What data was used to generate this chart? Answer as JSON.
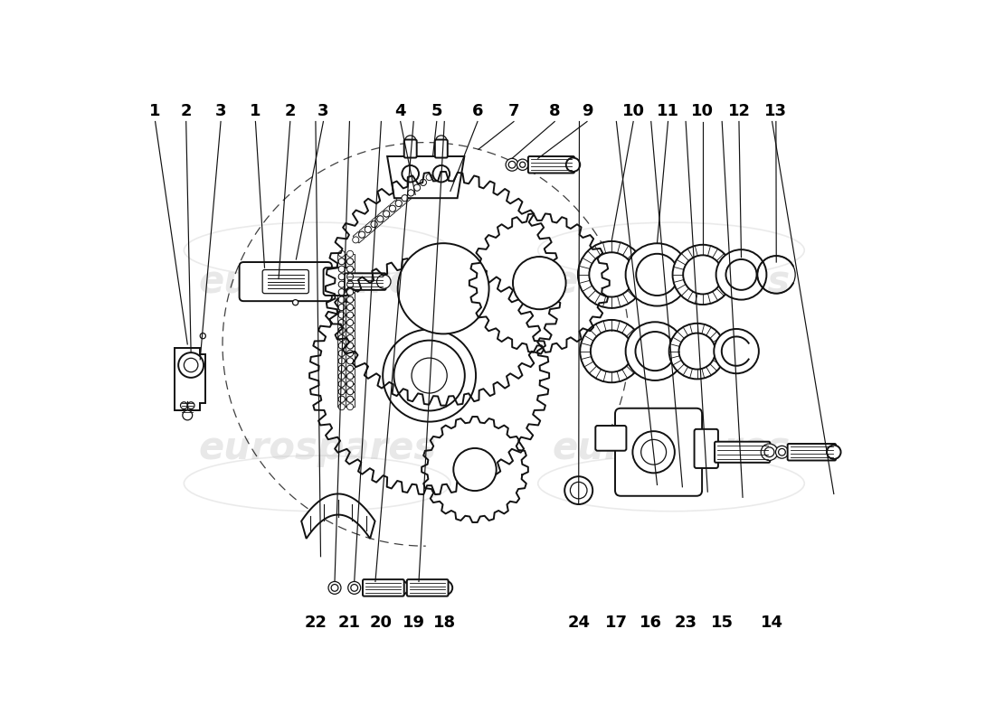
{
  "background_color": "#ffffff",
  "line_color": "#111111",
  "watermark_color": "#cccccc",
  "watermark_text": "eurospares",
  "top_labels": [
    [
      "1",
      0.04
    ],
    [
      "2",
      0.08
    ],
    [
      "3",
      0.125
    ],
    [
      "1",
      0.17
    ],
    [
      "2",
      0.215
    ],
    [
      "3",
      0.258
    ],
    [
      "4",
      0.358
    ],
    [
      "5",
      0.405
    ],
    [
      "6",
      0.458
    ],
    [
      "7",
      0.505
    ],
    [
      "8",
      0.558
    ],
    [
      "9",
      0.6
    ],
    [
      "10",
      0.66
    ],
    [
      "11",
      0.705
    ],
    [
      "10",
      0.75
    ],
    [
      "12",
      0.797
    ],
    [
      "13",
      0.845
    ]
  ],
  "bottom_labels": [
    [
      "22",
      0.248
    ],
    [
      "21",
      0.292
    ],
    [
      "20",
      0.333
    ],
    [
      "19",
      0.375
    ],
    [
      "18",
      0.415
    ],
    [
      "24",
      0.59
    ],
    [
      "17",
      0.638
    ],
    [
      "16",
      0.683
    ],
    [
      "23",
      0.728
    ],
    [
      "15",
      0.775
    ],
    [
      "14",
      0.84
    ]
  ],
  "label_fontsize": 13,
  "lw_main": 1.4,
  "lw_thin": 0.9
}
